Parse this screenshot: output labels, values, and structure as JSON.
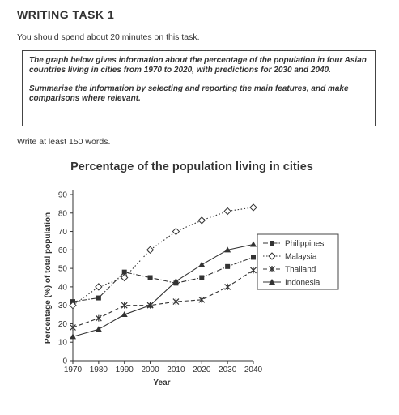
{
  "header": {
    "title": "WRITING TASK 1"
  },
  "instructions": {
    "time": "You should spend about 20 minutes on this task.",
    "task_line1": "The graph below gives information about the percentage of the population in four Asian countries living in cities from 1970 to 2020, with predictions for 2030 and 2040.",
    "task_line2": "Summarise the information by selecting and reporting the main features, and make comparisons where relevant.",
    "word_count": "Write at least 150 words."
  },
  "chart_data": {
    "type": "line",
    "title": "Percentage of the population living in cities",
    "xlabel": "Year",
    "ylabel": "Percentage (%) of total population",
    "x": [
      1970,
      1980,
      1990,
      2000,
      2010,
      2020,
      2030,
      2040
    ],
    "ylim": [
      0,
      90
    ],
    "yticks": [
      0,
      10,
      20,
      30,
      40,
      50,
      60,
      70,
      80,
      90
    ],
    "grid": false,
    "legend_position": "right",
    "series": [
      {
        "name": "Philippines",
        "marker": "square",
        "dash": "dash-dot",
        "values": [
          32,
          34,
          48,
          45,
          42,
          45,
          51,
          56
        ]
      },
      {
        "name": "Malaysia",
        "marker": "diamond-open",
        "dash": "dotted",
        "values": [
          30,
          40,
          45,
          60,
          70,
          76,
          81,
          83
        ]
      },
      {
        "name": "Thailand",
        "marker": "asterisk",
        "dash": "dashed",
        "values": [
          18,
          23,
          30,
          30,
          32,
          33,
          40,
          49
        ]
      },
      {
        "name": "Indonesia",
        "marker": "triangle",
        "dash": "solid",
        "values": [
          13,
          17,
          25,
          30,
          43,
          52,
          60,
          63
        ]
      }
    ]
  }
}
